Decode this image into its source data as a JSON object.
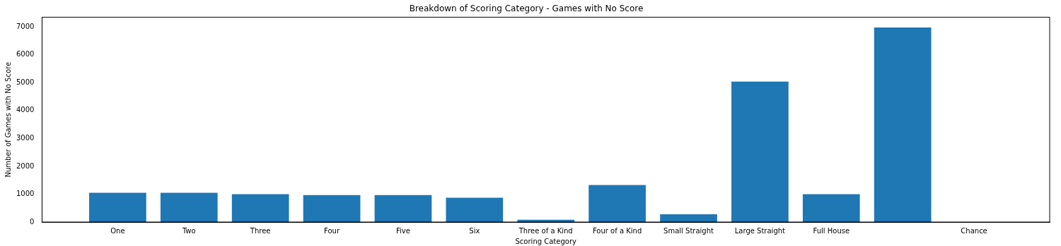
{
  "chart_data": {
    "type": "bar",
    "title": "Breakdown of Scoring Category - Games with No Score",
    "xlabel": "Scoring Category",
    "ylabel": "Number of Games with No Score",
    "categories": [
      "One",
      "Two",
      "Three",
      "Four",
      "Five",
      "Six",
      "Three of a Kind",
      "Four of a Kind",
      "Small Straight",
      "Large Straight",
      "Full House",
      null,
      "Chance"
    ],
    "values": [
      1050,
      1050,
      1000,
      970,
      970,
      870,
      80,
      1330,
      280,
      5040,
      1000,
      6980,
      0
    ],
    "color": "#1f77b4",
    "ylim": [
      0,
      7350
    ],
    "yticks": [
      0,
      1000,
      2000,
      3000,
      4000,
      5000,
      6000,
      7000
    ],
    "grid": false,
    "legend": false
  }
}
